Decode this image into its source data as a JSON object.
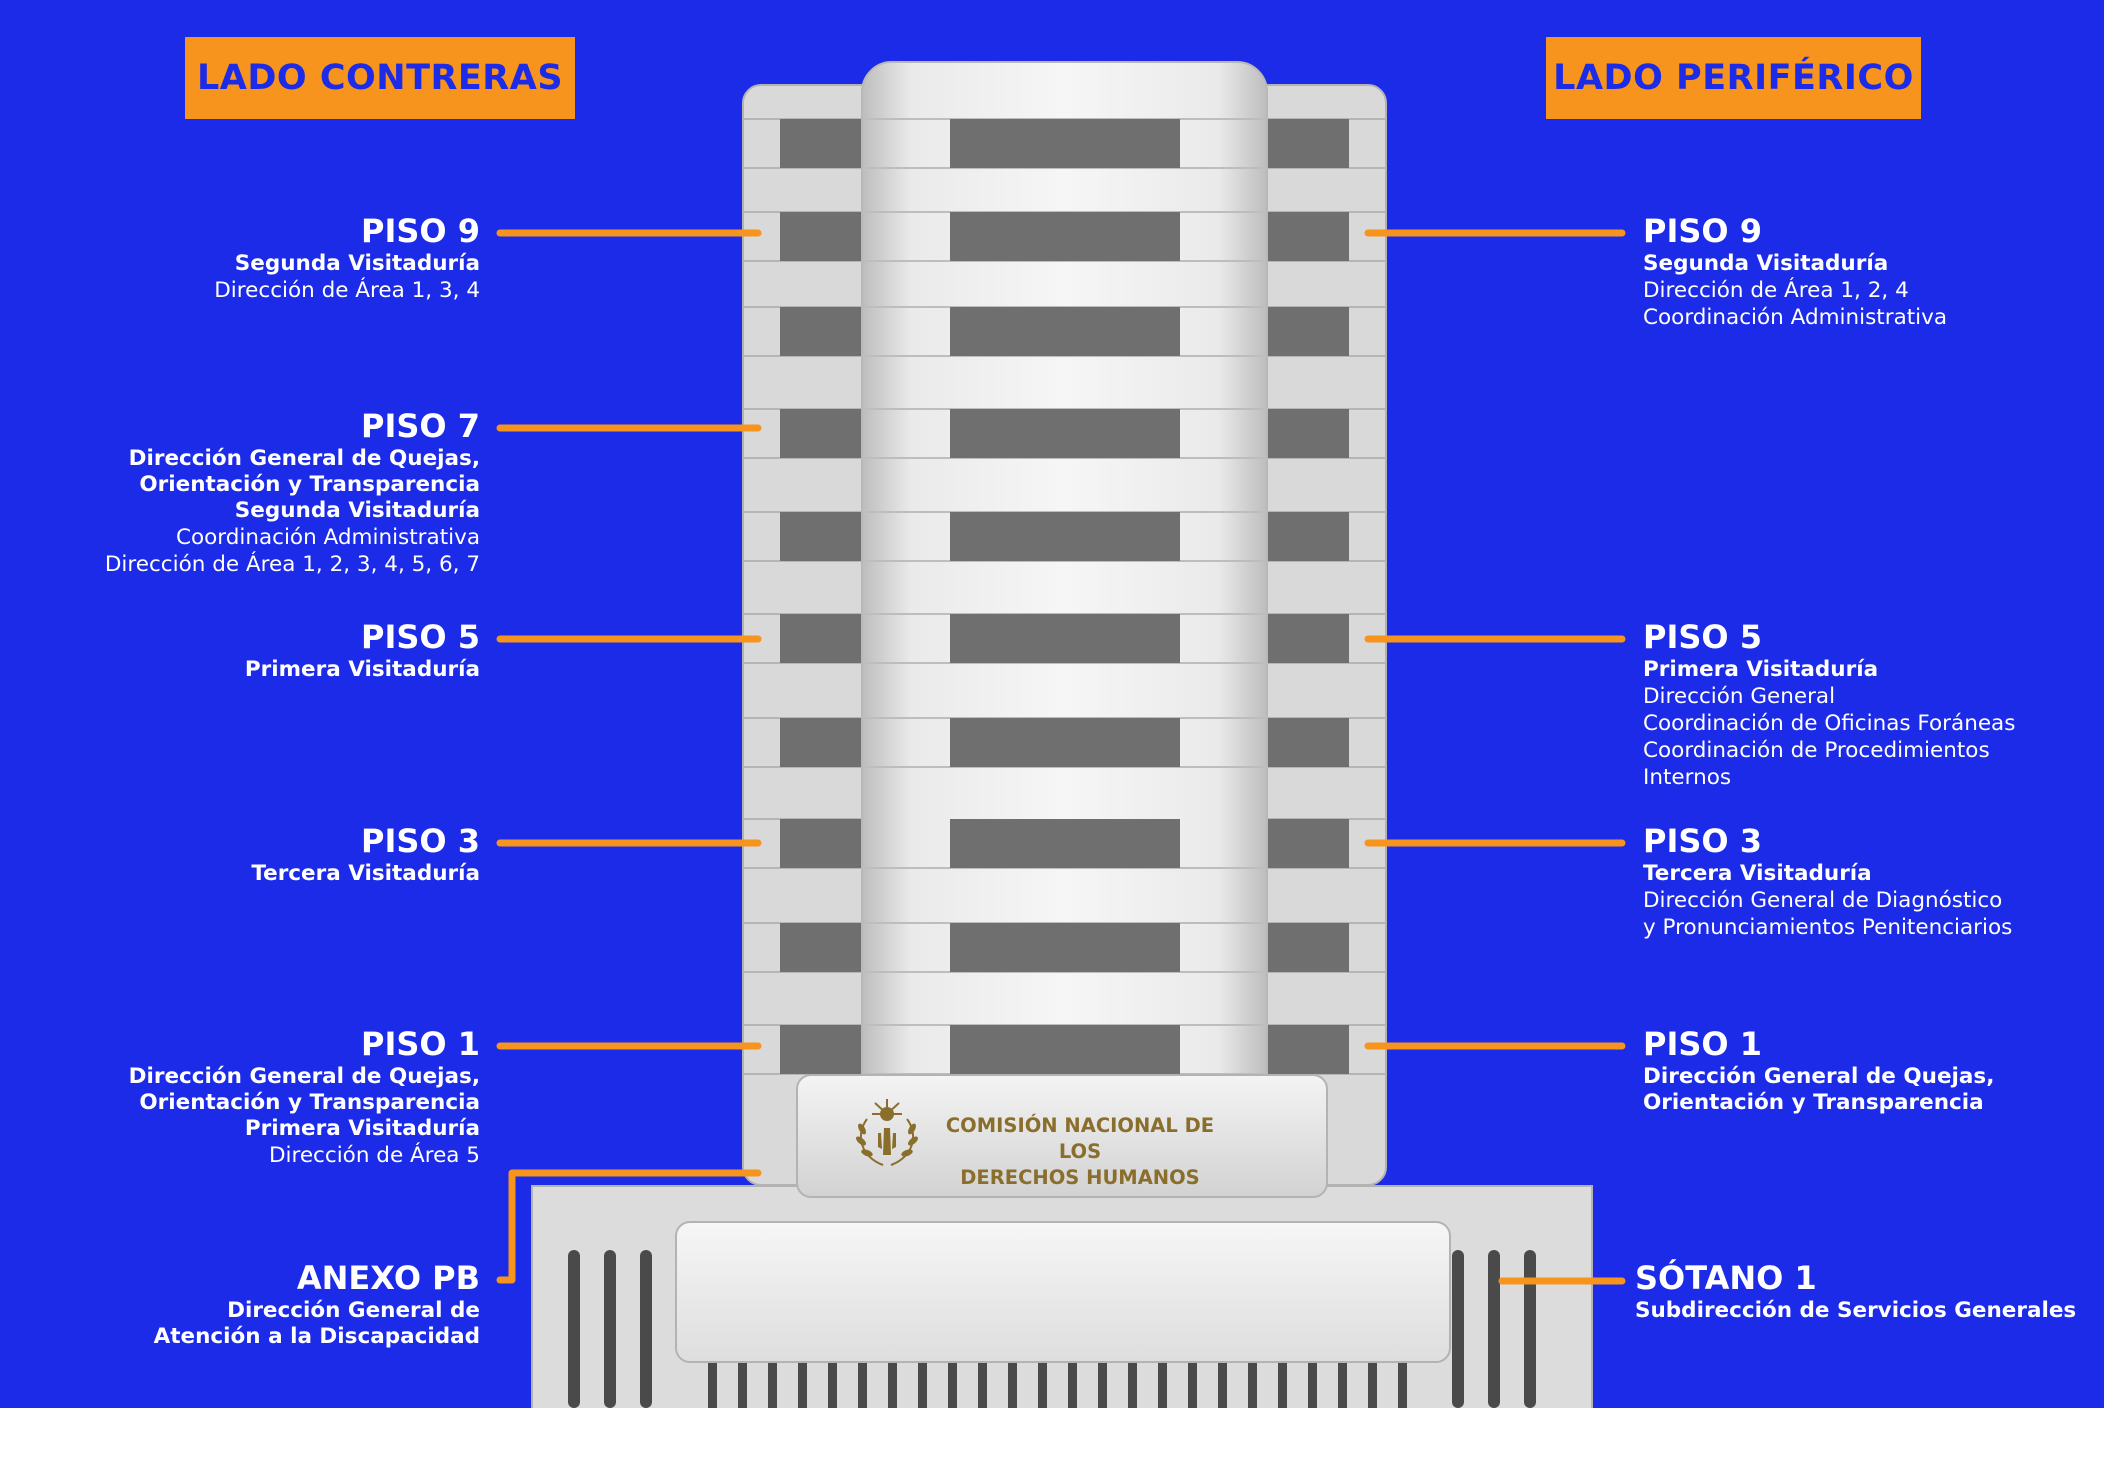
{
  "headers": {
    "left_side": "LADO CONTRERAS",
    "right_side": "LADO PERIFÉRICO"
  },
  "colors": {
    "background": "#1c2be8",
    "accent": "#f7941d",
    "logo_gold": "#8a6e2c"
  },
  "logo": {
    "line1": "COMISIÓN NACIONAL DE LOS",
    "line2": "DERECHOS HUMANOS",
    "icon": "hand-sun-laurel-emblem-icon"
  },
  "left_labels": [
    {
      "title": "PISO 9",
      "lines": [
        {
          "text": "Segunda Visitaduría",
          "bold": true
        },
        {
          "text": "Dirección de Área 1, 3, 4",
          "bold": false
        }
      ]
    },
    {
      "title": "PISO 7",
      "lines": [
        {
          "text": "Dirección General de Quejas,",
          "bold": true
        },
        {
          "text": "Orientación y Transparencia",
          "bold": true
        },
        {
          "text": "Segunda Visitaduría",
          "bold": true
        },
        {
          "text": "Coordinación Administrativa",
          "bold": false
        },
        {
          "text": "Dirección de Área 1, 2, 3, 4, 5, 6, 7",
          "bold": false
        }
      ]
    },
    {
      "title": "PISO 5",
      "lines": [
        {
          "text": "Primera Visitaduría",
          "bold": true
        }
      ]
    },
    {
      "title": "PISO 3",
      "lines": [
        {
          "text": "Tercera Visitaduría",
          "bold": true
        }
      ]
    },
    {
      "title": "PISO 1",
      "lines": [
        {
          "text": "Dirección General de Quejas,",
          "bold": true
        },
        {
          "text": "Orientación y Transparencia",
          "bold": true
        },
        {
          "text": "Primera Visitaduría",
          "bold": true
        },
        {
          "text": "Dirección de Área 5",
          "bold": false
        }
      ]
    },
    {
      "title": "ANEXO PB",
      "lines": [
        {
          "text": "Dirección General de",
          "bold": true
        },
        {
          "text": "Atención a la Discapacidad",
          "bold": true
        }
      ]
    }
  ],
  "right_labels": [
    {
      "title": "PISO 9",
      "lines": [
        {
          "text": "Segunda Visitaduría",
          "bold": true
        },
        {
          "text": "Dirección de Área 1, 2, 4",
          "bold": false
        },
        {
          "text": "Coordinación Administrativa",
          "bold": false
        }
      ]
    },
    {
      "title": "PISO 5",
      "lines": [
        {
          "text": "Primera Visitaduría",
          "bold": true
        },
        {
          "text": "Dirección General",
          "bold": false
        },
        {
          "text": "Coordinación de Oficinas Foráneas",
          "bold": false
        },
        {
          "text": "Coordinación de Procedimientos",
          "bold": false
        },
        {
          "text": "Internos",
          "bold": false
        }
      ]
    },
    {
      "title": "PISO 3",
      "lines": [
        {
          "text": "Tercera Visitaduría",
          "bold": true
        },
        {
          "text": "Dirección General de Diagnóstico",
          "bold": false
        },
        {
          "text": "y Pronunciamientos Penitenciarios",
          "bold": false
        }
      ]
    },
    {
      "title": "PISO 1",
      "lines": [
        {
          "text": "Dirección General de Quejas,",
          "bold": true
        },
        {
          "text": "Orientación y Transparencia",
          "bold": true
        }
      ]
    },
    {
      "title": "SÓTANO 1",
      "lines": [
        {
          "text": "Subdirección de Servicios Generales",
          "bold": true
        }
      ]
    }
  ]
}
